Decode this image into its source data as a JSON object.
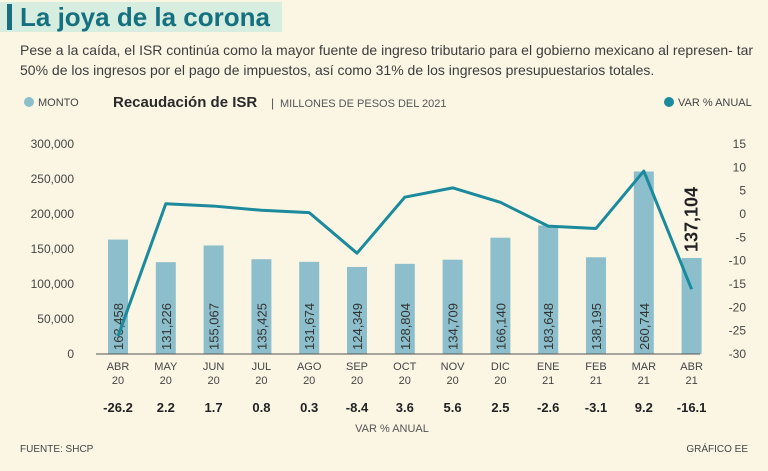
{
  "header": {
    "title": "La joya de la corona",
    "subtitle": "Pese a la caída, el ISR continúa como la mayor fuente de ingreso tributario para el gobierno mexicano al represen- tar 50% de los ingresos por el pago de impuestos, así como 31% de los ingresos presupuestarios totales."
  },
  "footer": {
    "source": "FUENTE: SHCP",
    "credit": "GRÁFICO EE"
  },
  "colors": {
    "bar": "#8cbfcb",
    "line": "#1a8a9c",
    "title_text": "#15707f",
    "title_bg": "#d6ede0",
    "background": "#fbf6e4"
  },
  "chart_data": {
    "type": "bar",
    "title": "Recaudación de ISR",
    "subtitle": "MILLONES DE PESOS DEL 2021",
    "categories": [
      [
        "ABR",
        "20"
      ],
      [
        "MAY",
        "20"
      ],
      [
        "JUN",
        "20"
      ],
      [
        "JUL",
        "20"
      ],
      [
        "AGO",
        "20"
      ],
      [
        "SEP",
        "20"
      ],
      [
        "OCT",
        "20"
      ],
      [
        "NOV",
        "20"
      ],
      [
        "DIC",
        "20"
      ],
      [
        "ENE",
        "21"
      ],
      [
        "FEB",
        "21"
      ],
      [
        "MAR",
        "21"
      ],
      [
        "ABR",
        "21"
      ]
    ],
    "series": [
      {
        "name": "MONTO",
        "type": "bar",
        "axis": "left",
        "values": [
          163458,
          131226,
          155067,
          135425,
          131674,
          124349,
          128804,
          134709,
          166140,
          183648,
          138195,
          260744,
          137104
        ],
        "labels": [
          "163,458",
          "131,226",
          "155,067",
          "135,425",
          "131,674",
          "124,349",
          "128,804",
          "134,709",
          "166,140",
          "183,648",
          "138,195",
          "260,744",
          "137,104"
        ]
      },
      {
        "name": "VAR % ANUAL",
        "type": "line",
        "axis": "right",
        "values": [
          -26.2,
          2.2,
          1.7,
          0.8,
          0.3,
          -8.4,
          3.6,
          5.6,
          2.5,
          -2.6,
          -3.1,
          9.2,
          -16.1
        ],
        "labels": [
          "-26.2",
          "2.2",
          "1.7",
          "0.8",
          "0.3",
          "-8.4",
          "3.6",
          "5.6",
          "2.5",
          "-2.6",
          "-3.1",
          "9.2",
          "-16.1"
        ]
      }
    ],
    "y_left": {
      "range": [
        0,
        300000
      ],
      "ticks": [
        0,
        50000,
        100000,
        150000,
        200000,
        250000,
        300000
      ],
      "tick_labels": [
        "0",
        "50,000",
        "100,000",
        "150,000",
        "200,000",
        "250,000",
        "300,000"
      ]
    },
    "y_right": {
      "range": [
        -30,
        15
      ],
      "ticks": [
        -30,
        -25,
        -20,
        -15,
        -10,
        -5,
        0,
        5,
        10,
        15
      ],
      "tick_labels": [
        "-30",
        "-25",
        "-20",
        "-15",
        "-10",
        "-5",
        "0",
        "5",
        "10",
        "15"
      ]
    },
    "var_row_label": "VAR % ANUAL",
    "legend_left": "MONTO",
    "legend_right": "VAR % ANUAL",
    "highlight_index": 12
  }
}
